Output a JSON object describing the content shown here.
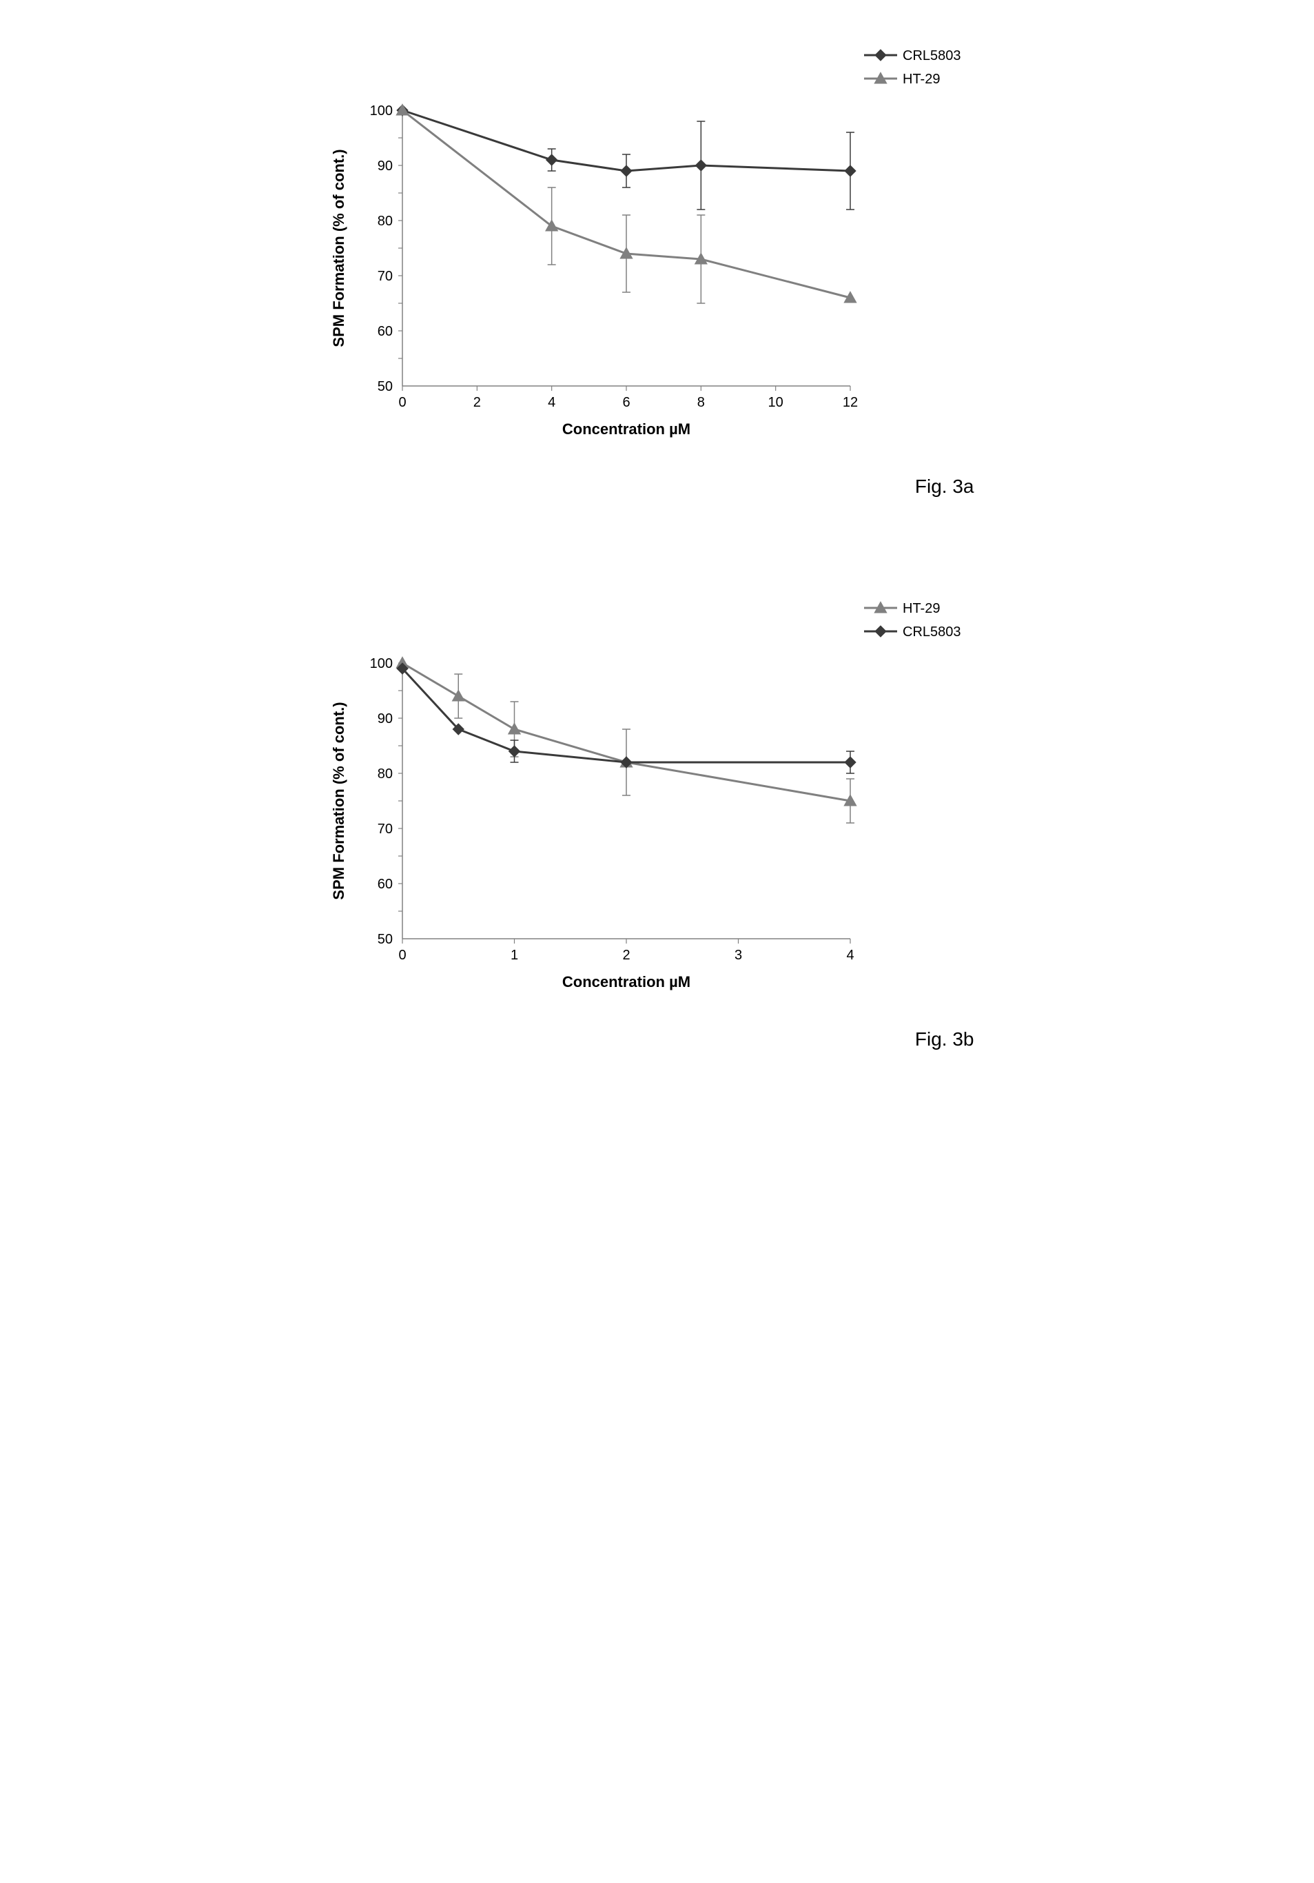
{
  "fig3a": {
    "caption": "Fig. 3a",
    "type": "line",
    "xlabel": "Concentration µM",
    "ylabel": "SPM  Formation (% of cont.)",
    "label_fontsize": 22,
    "tick_fontsize": 20,
    "legend_fontsize": 20,
    "xlim": [
      0,
      12
    ],
    "ylim": [
      50,
      100
    ],
    "xticks": [
      0,
      2,
      4,
      6,
      8,
      10,
      12
    ],
    "yticks": [
      50,
      60,
      70,
      80,
      90,
      100
    ],
    "y_tickmarks": [
      55,
      60,
      65,
      70,
      75,
      80,
      85,
      90,
      95,
      100
    ],
    "background_color": "#ffffff",
    "axis_color": "#808080",
    "tick_color": "#808080",
    "text_color": "#000000",
    "line_width": 3,
    "marker_size": 8,
    "errorbar_width": 1.5,
    "errorbar_cap": 6,
    "legend": [
      {
        "label": "CRL5803",
        "marker": "diamond",
        "color": "#3a3a3a"
      },
      {
        "label": "HT-29",
        "marker": "triangle",
        "color": "#808080"
      }
    ],
    "series": [
      {
        "name": "CRL5803",
        "marker": "diamond",
        "color": "#3a3a3a",
        "x": [
          0,
          4,
          6,
          8,
          12
        ],
        "y": [
          100,
          91,
          89,
          90,
          89
        ],
        "yerr": [
          0,
          2,
          3,
          8,
          7
        ]
      },
      {
        "name": "HT-29",
        "marker": "triangle",
        "color": "#808080",
        "x": [
          0,
          4,
          6,
          8,
          12
        ],
        "y": [
          100,
          79,
          74,
          73,
          66
        ],
        "yerr": [
          0,
          7,
          7,
          8,
          0
        ]
      }
    ]
  },
  "fig3b": {
    "caption": "Fig. 3b",
    "type": "line",
    "xlabel": "Concentration µM",
    "ylabel": "SPM Formation  (% of cont.)",
    "label_fontsize": 22,
    "tick_fontsize": 20,
    "legend_fontsize": 20,
    "xlim": [
      0,
      4
    ],
    "ylim": [
      50,
      100
    ],
    "xticks": [
      0,
      1,
      2,
      3,
      4
    ],
    "yticks": [
      50,
      60,
      70,
      80,
      90,
      100
    ],
    "y_tickmarks": [
      55,
      60,
      65,
      70,
      75,
      80,
      85,
      90,
      95,
      100
    ],
    "background_color": "#ffffff",
    "axis_color": "#808080",
    "tick_color": "#808080",
    "text_color": "#000000",
    "line_width": 3,
    "marker_size": 8,
    "errorbar_width": 1.5,
    "errorbar_cap": 6,
    "legend": [
      {
        "label": "HT-29",
        "marker": "triangle",
        "color": "#808080"
      },
      {
        "label": "CRL5803",
        "marker": "diamond",
        "color": "#3a3a3a"
      }
    ],
    "series": [
      {
        "name": "HT-29",
        "marker": "triangle",
        "color": "#808080",
        "x": [
          0,
          0.5,
          1,
          2,
          4
        ],
        "y": [
          100,
          94,
          88,
          82,
          75
        ],
        "yerr": [
          0,
          4,
          5,
          6,
          4
        ]
      },
      {
        "name": "CRL5803",
        "marker": "diamond",
        "color": "#3a3a3a",
        "x": [
          0,
          0.5,
          1,
          2,
          4
        ],
        "y": [
          99,
          88,
          84,
          82,
          82
        ],
        "yerr": [
          0,
          0,
          2,
          0,
          2
        ]
      }
    ]
  }
}
